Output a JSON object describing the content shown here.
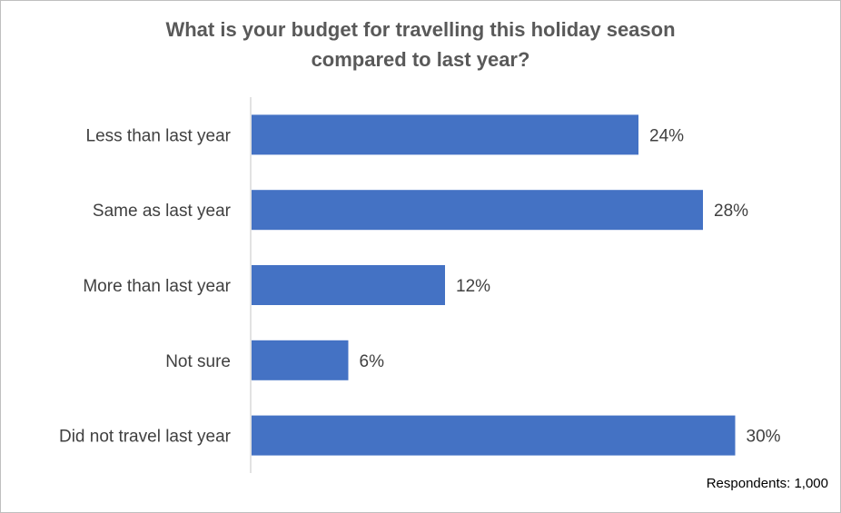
{
  "chart_data": {
    "type": "bar",
    "orientation": "horizontal",
    "title_line1": "What is your budget for travelling this holiday season",
    "title_line2": "compared to last year?",
    "categories": [
      "Less than last year",
      "Same as last year",
      "More than last year",
      "Not sure",
      "Did not travel last year"
    ],
    "values": [
      24,
      28,
      12,
      6,
      30
    ],
    "value_labels": [
      "24%",
      "28%",
      "12%",
      "6%",
      "30%"
    ],
    "unit": "%",
    "xlim": [
      0,
      35
    ],
    "grid": false,
    "legend": "none",
    "bar_color": "#4472c4"
  },
  "footnote": "Respondents: 1,000"
}
